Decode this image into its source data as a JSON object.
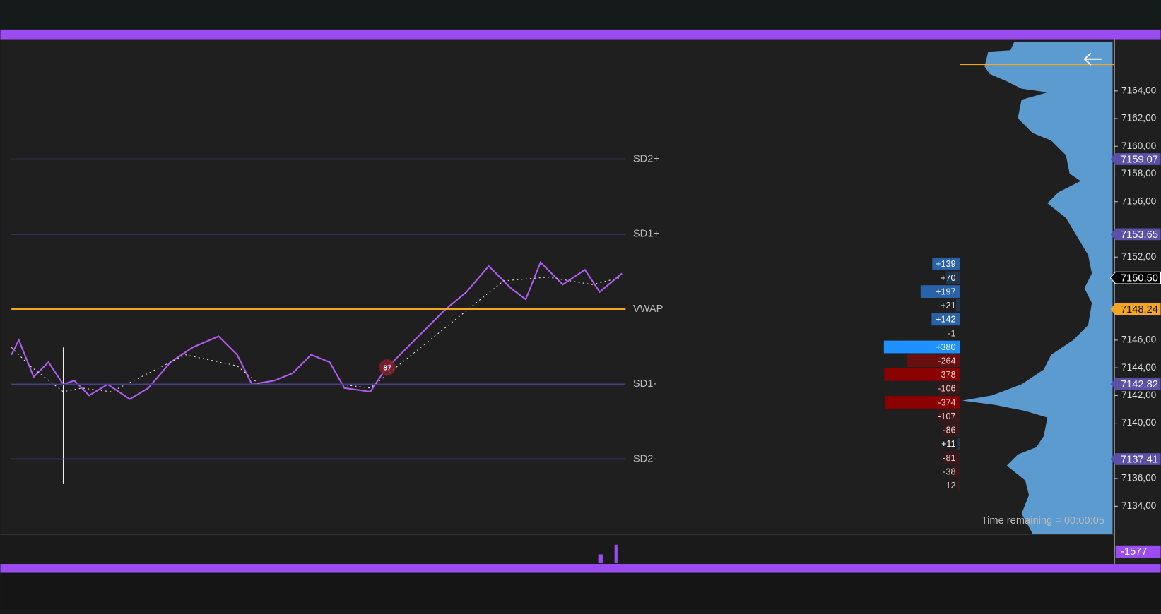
{
  "price_axis": {
    "ticks": [
      {
        "value": 7164,
        "label": "7164,00"
      },
      {
        "value": 7162,
        "label": "7162,00"
      },
      {
        "value": 7160,
        "label": "7160,00"
      },
      {
        "value": 7158,
        "label": "7158,00"
      },
      {
        "value": 7156,
        "label": "7156,00"
      },
      {
        "value": 7152,
        "label": "7152,00"
      },
      {
        "value": 7146,
        "label": "7146,00"
      },
      {
        "value": 7144,
        "label": "7144,00"
      },
      {
        "value": 7142,
        "label": "7142,00"
      },
      {
        "value": 7140,
        "label": "7140,00"
      },
      {
        "value": 7136,
        "label": "7136,00"
      },
      {
        "value": 7134,
        "label": "7134,00"
      }
    ]
  },
  "bands": [
    {
      "label": "SD2+",
      "value": 7159.07,
      "marker": "7159.07"
    },
    {
      "label": "SD1+",
      "value": 7153.65,
      "marker": "7153.65"
    },
    {
      "label": "VWAP",
      "value": 7148.24,
      "marker": "7148.24"
    },
    {
      "label": "SD1-",
      "value": 7142.82,
      "marker": "7142.82"
    },
    {
      "label": "SD2-",
      "value": 7137.41,
      "marker": "7137.41"
    }
  ],
  "last_price": {
    "value": 7150.5,
    "label": "7150,50"
  },
  "delta_rows": [
    {
      "value": 139,
      "label": "+139"
    },
    {
      "value": 70,
      "label": "+70"
    },
    {
      "value": 197,
      "label": "+197"
    },
    {
      "value": 21,
      "label": "+21"
    },
    {
      "value": 142,
      "label": "+142"
    },
    {
      "value": -1,
      "label": "-1"
    },
    {
      "value": 380,
      "label": "+380"
    },
    {
      "value": -264,
      "label": "-264"
    },
    {
      "value": -378,
      "label": "-378"
    },
    {
      "value": -106,
      "label": "-106"
    },
    {
      "value": -374,
      "label": "-374"
    },
    {
      "value": -107,
      "label": "-107"
    },
    {
      "value": -86,
      "label": "-86"
    },
    {
      "value": 11,
      "label": "+11"
    },
    {
      "value": -81,
      "label": "-81"
    },
    {
      "value": -38,
      "label": "-38"
    },
    {
      "value": -12,
      "label": "-12"
    }
  ],
  "badge": "87",
  "time_remaining": "Time remaining = 00:00:05",
  "indicator_value": {
    "value": -1577,
    "label": "-1577"
  }
}
